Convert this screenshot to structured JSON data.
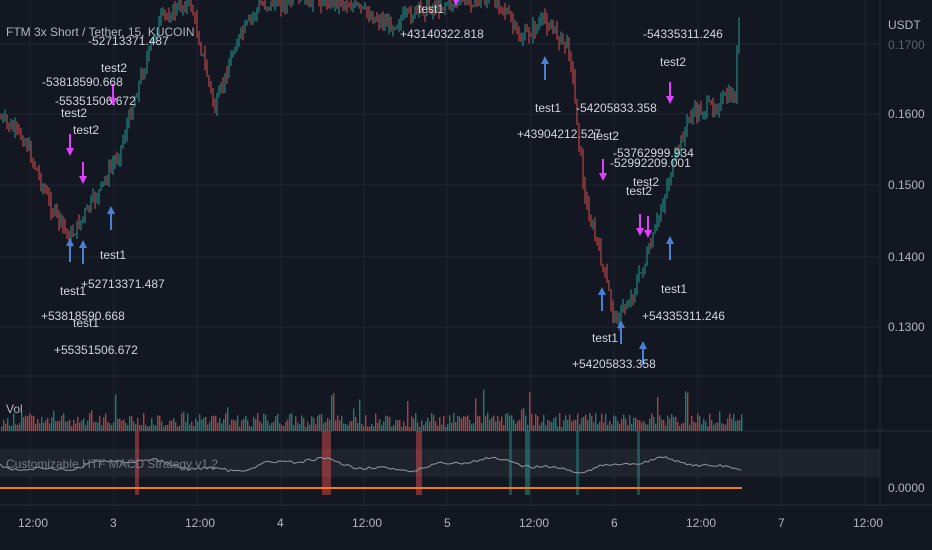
{
  "header": {
    "symbol_title": "FTM 3x Short / Tether, 15, KUCOIN",
    "currency": "USDT"
  },
  "panes": {
    "volume_label": "Vol",
    "indicator_label": "Customizable HTF MACD Strategy v1.2"
  },
  "price_axis": [
    "0.1700",
    "0.1600",
    "0.1500",
    "0.1400",
    "0.1300",
    "0.0000"
  ],
  "time_axis": [
    "12:00",
    "3",
    "12:00",
    "4",
    "12:00",
    "5",
    "12:00",
    "6",
    "12:00",
    "7",
    "12:00"
  ],
  "trade_labels": [
    {
      "text": "-52713371.487"
    },
    {
      "text": "test2"
    },
    {
      "text": "-53818590.668"
    },
    {
      "text": "-55351506.672"
    },
    {
      "text": "test2"
    },
    {
      "text": "test2"
    },
    {
      "text": "test1"
    },
    {
      "text": "+52713371.487"
    },
    {
      "text": "test1"
    },
    {
      "text": "+53818590.668"
    },
    {
      "text": "test1"
    },
    {
      "text": "+55351506.672"
    },
    {
      "text": "test1"
    },
    {
      "text": "+43140322.818"
    },
    {
      "text": "test1"
    },
    {
      "text": "+43904212.527"
    },
    {
      "text": "-54205833.358"
    },
    {
      "text": "test2"
    },
    {
      "text": "-53762999.934"
    },
    {
      "text": "-52992209.001"
    },
    {
      "text": "test2"
    },
    {
      "text": "test2"
    },
    {
      "text": "-54335311.246"
    },
    {
      "text": "test2"
    },
    {
      "text": "test1"
    },
    {
      "text": "+54335311.246"
    },
    {
      "text": "test1"
    },
    {
      "text": "+54205833.358"
    }
  ],
  "colors": {
    "background": "#131722",
    "up": "#26a69a",
    "down": "#ef5350",
    "long_arrow": "#4a7fd4",
    "short_arrow": "#e040fb",
    "macd_line": "#9598a1",
    "zero_line": "#f57c00"
  }
}
